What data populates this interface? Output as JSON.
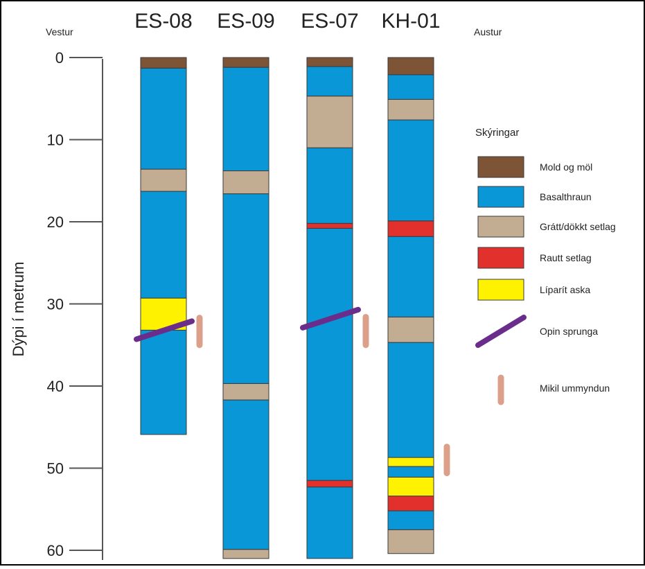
{
  "diagram": {
    "left_label": "Vestur",
    "right_label": "Austur",
    "y_axis_label": "Dýpi í metrum",
    "y_ticks": [
      0,
      10,
      20,
      30,
      40,
      50,
      60
    ]
  },
  "colors": {
    "mold": "#7d5436",
    "basalt": "#0a97d8",
    "gray": "#c3ad92",
    "red": "#e2312d",
    "yellow": "#fef200",
    "fracture": "#6b2d8c",
    "alteration": "#dca08a",
    "outline": "#3a3a3a"
  },
  "chart_data": {
    "type": "table",
    "units": "m",
    "wells": [
      {
        "name": "ES-08",
        "layers": [
          {
            "type": "mold",
            "top": 0,
            "bottom": 1.3
          },
          {
            "type": "basalt",
            "top": 1.3,
            "bottom": 13.6
          },
          {
            "type": "gray",
            "top": 13.6,
            "bottom": 16.3
          },
          {
            "type": "basalt",
            "top": 16.3,
            "bottom": 29.3
          },
          {
            "type": "yellow",
            "top": 29.3,
            "bottom": 33.2
          },
          {
            "type": "basalt",
            "top": 33.2,
            "bottom": 45.9
          }
        ],
        "fracture_depth": [
          34.3,
          32.1
        ],
        "alteration_depth": [
          31.7,
          35.0
        ]
      },
      {
        "name": "ES-09",
        "layers": [
          {
            "type": "mold",
            "top": 0,
            "bottom": 1.2
          },
          {
            "type": "basalt",
            "top": 1.2,
            "bottom": 13.8
          },
          {
            "type": "gray",
            "top": 13.8,
            "bottom": 16.6
          },
          {
            "type": "basalt",
            "top": 16.6,
            "bottom": 39.7
          },
          {
            "type": "gray",
            "top": 39.7,
            "bottom": 41.7
          },
          {
            "type": "basalt",
            "top": 41.7,
            "bottom": 59.9
          },
          {
            "type": "gray",
            "top": 59.9,
            "bottom": 61.0
          }
        ]
      },
      {
        "name": "ES-07",
        "layers": [
          {
            "type": "mold",
            "top": 0,
            "bottom": 1.1
          },
          {
            "type": "basalt",
            "top": 1.1,
            "bottom": 4.7
          },
          {
            "type": "gray",
            "top": 4.7,
            "bottom": 11.0
          },
          {
            "type": "basalt",
            "top": 11.0,
            "bottom": 20.2
          },
          {
            "type": "red",
            "top": 20.2,
            "bottom": 20.8
          },
          {
            "type": "basalt",
            "top": 20.8,
            "bottom": 51.5
          },
          {
            "type": "red",
            "top": 51.5,
            "bottom": 52.3
          },
          {
            "type": "basalt",
            "top": 52.3,
            "bottom": 61.0
          }
        ],
        "fracture_depth": [
          32.9,
          30.7
        ],
        "alteration_depth": [
          31.6,
          35.0
        ]
      },
      {
        "name": "KH-01",
        "layers": [
          {
            "type": "mold",
            "top": 0,
            "bottom": 2.1
          },
          {
            "type": "basalt",
            "top": 2.1,
            "bottom": 5.1
          },
          {
            "type": "gray",
            "top": 5.1,
            "bottom": 7.6
          },
          {
            "type": "basalt",
            "top": 7.6,
            "bottom": 19.9
          },
          {
            "type": "red",
            "top": 19.9,
            "bottom": 21.8
          },
          {
            "type": "basalt",
            "top": 21.8,
            "bottom": 31.6
          },
          {
            "type": "gray",
            "top": 31.6,
            "bottom": 34.7
          },
          {
            "type": "basalt",
            "top": 34.7,
            "bottom": 48.7
          },
          {
            "type": "yellow",
            "top": 48.7,
            "bottom": 49.8
          },
          {
            "type": "basalt",
            "top": 49.8,
            "bottom": 51.1
          },
          {
            "type": "yellow",
            "top": 51.1,
            "bottom": 53.4
          },
          {
            "type": "red",
            "top": 53.4,
            "bottom": 55.2
          },
          {
            "type": "basalt",
            "top": 55.2,
            "bottom": 57.5
          },
          {
            "type": "gray",
            "top": 57.5,
            "bottom": 60.4
          }
        ],
        "alteration_depth": [
          47.4,
          50.6
        ]
      }
    ]
  },
  "legend": {
    "title": "Skýringar",
    "items": [
      {
        "key": "mold",
        "label": "Mold og möl",
        "symbol": "box"
      },
      {
        "key": "basalt",
        "label": "Basalthraun",
        "symbol": "box"
      },
      {
        "key": "gray",
        "label": "Grátt/dökkt setlag",
        "symbol": "box"
      },
      {
        "key": "red",
        "label": "Rautt setlag",
        "symbol": "box"
      },
      {
        "key": "yellow",
        "label": "Líparít aska",
        "symbol": "box"
      },
      {
        "key": "fracture",
        "label": "Opin sprunga",
        "symbol": "line"
      },
      {
        "key": "alteration",
        "label": "Mikil ummyndun",
        "symbol": "bar"
      }
    ]
  }
}
